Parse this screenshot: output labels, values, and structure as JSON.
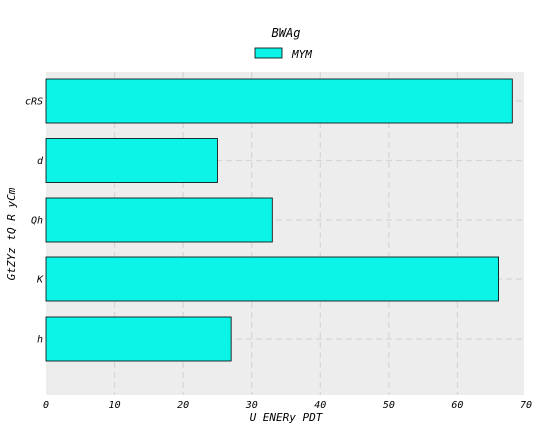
{
  "chart_data": {
    "type": "bar",
    "orientation": "horizontal",
    "title": "BWAg",
    "xlabel": "U ENERy PDT",
    "ylabel": "GtZYz tQ R yCm",
    "categories": [
      "cRS",
      "d",
      "Qh",
      "K",
      "h"
    ],
    "series": [
      {
        "name": "MYM",
        "values": [
          68,
          25,
          33,
          66,
          27
        ],
        "color": "#0cf4e8"
      }
    ],
    "xlim": [
      0,
      70
    ],
    "xticks": [
      0,
      10,
      20,
      30,
      40,
      50,
      60,
      70
    ],
    "grid": true,
    "legend_position": "top-center",
    "colors": {
      "plot_background": "#ededed",
      "grid": "#d6d6d6",
      "bar_edge": "#000000",
      "text": "#000000"
    }
  }
}
